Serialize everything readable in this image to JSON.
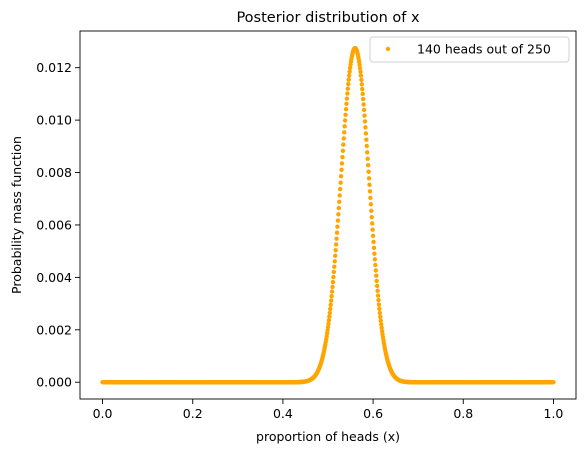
{
  "chart_data": {
    "type": "scatter",
    "title": "Posterior distribution of x",
    "xlabel": "proportion of heads (x)",
    "ylabel": "Probability mass function",
    "xlim": [
      -0.05,
      1.05
    ],
    "ylim": [
      -0.00064,
      0.0134
    ],
    "xticks": [
      0.0,
      0.2,
      0.4,
      0.6,
      0.8,
      1.0
    ],
    "xtick_labels": [
      "0.0",
      "0.2",
      "0.4",
      "0.6",
      "0.8",
      "1.0"
    ],
    "yticks": [
      0.0,
      0.002,
      0.004,
      0.006,
      0.008,
      0.01,
      0.012
    ],
    "ytick_labels": [
      "0.000",
      "0.002",
      "0.004",
      "0.006",
      "0.008",
      "0.010",
      "0.012"
    ],
    "grid": false,
    "legend_position": "top-right",
    "series": [
      {
        "name": "140 heads out of 250",
        "color": "#FFA500",
        "marker": "circle",
        "distribution": {
          "kind": "binomial-posterior",
          "heads": 140,
          "trials": 250,
          "grid_points": 1001,
          "x_min": 0.0,
          "x_max": 1.0
        }
      }
    ]
  }
}
